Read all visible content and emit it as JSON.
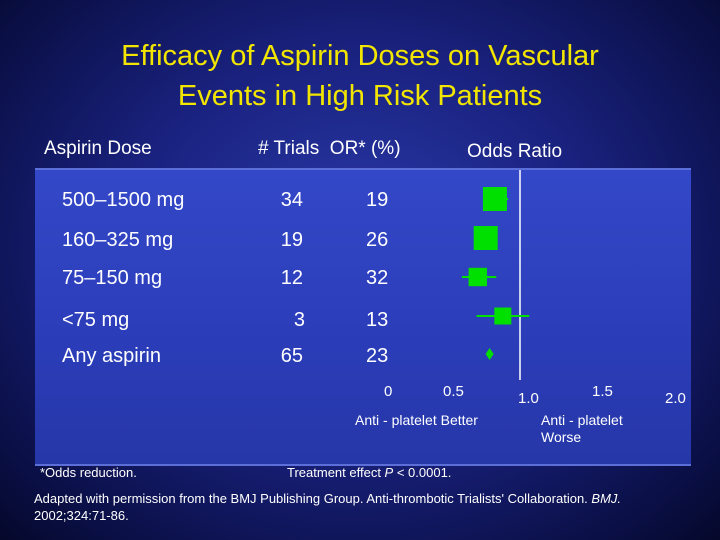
{
  "title_line1": "Efficacy of Aspirin Doses on Vascular",
  "title_line2": "Events in High Risk Patients",
  "headers": {
    "dose": "Aspirin Dose",
    "trials_or": "# Trials  OR* (%)",
    "odds_ratio": "Odds Ratio"
  },
  "rows": [
    {
      "dose": "500–1500 mg",
      "trials": "34",
      "or_pct": "19"
    },
    {
      "dose": "160–325 mg",
      "trials": "19",
      "or_pct": "26"
    },
    {
      "dose": "75–150 mg",
      "trials": "12",
      "or_pct": "32"
    },
    {
      "dose": "<75 mg",
      "trials": "3",
      "or_pct": "13"
    },
    {
      "dose": "Any aspirin",
      "trials": "65",
      "or_pct": "23"
    }
  ],
  "colors": {
    "title": "#f2e600",
    "marker": "#00e000",
    "background": "#1a2280"
  },
  "chart_data": {
    "type": "forest",
    "title": "Odds Ratio",
    "categories": [
      "500–1500 mg",
      "160–325 mg",
      "75–150 mg",
      "<75 mg",
      "Any aspirin"
    ],
    "values": [
      0.81,
      0.74,
      0.68,
      0.87,
      0.77
    ],
    "ci_low": [
      0.72,
      0.67,
      0.56,
      0.67,
      0.77
    ],
    "ci_high": [
      0.91,
      0.82,
      0.82,
      1.07,
      0.77
    ],
    "marker_weight": [
      1.0,
      1.0,
      0.6,
      0.5,
      0.4
    ],
    "marker_shape": [
      "square",
      "square",
      "square",
      "square",
      "diamond"
    ],
    "xlim": [
      0,
      2.0
    ],
    "x_ticks": [
      "0",
      "0.5",
      "1.0",
      "1.5",
      "2.0"
    ],
    "reference_line": 1.0,
    "left_label": "Anti - platelet Better",
    "right_label_line1": "Anti - platelet",
    "right_label_line2": "Worse",
    "grid": false
  },
  "footnote_or": "*Odds reduction.",
  "treatment_effect_prefix": "Treatment effect ",
  "treatment_effect_p": "P",
  "treatment_effect_suffix": " < 0.0001.",
  "citation_main": "Adapted with permission from the BMJ Publishing Group. Anti-thrombotic Trialists' Collaboration. ",
  "citation_journal": "BMJ.",
  "citation_ref": "2002;324:71-86."
}
